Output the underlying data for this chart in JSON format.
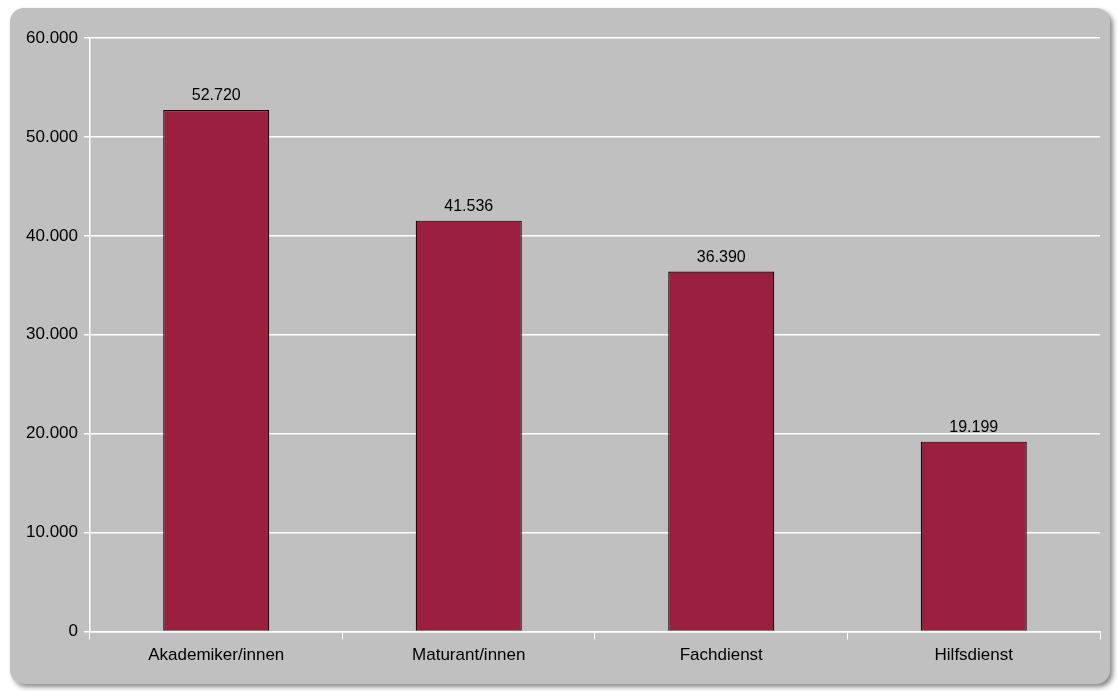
{
  "chart_data": {
    "type": "bar",
    "categories": [
      "Akademiker/innen",
      "Maturant/innen",
      "Fachdienst",
      "Hilfsdienst"
    ],
    "values": [
      52720,
      41536,
      36390,
      19199
    ],
    "value_labels": [
      "52.720",
      "41.536",
      "36.390",
      "19.199"
    ],
    "color": "#9b2040",
    "ylim": [
      0,
      60000
    ],
    "yticks": [
      {
        "value": 0,
        "label": "0"
      },
      {
        "value": 10000,
        "label": "10.000"
      },
      {
        "value": 20000,
        "label": "20.000"
      },
      {
        "value": 30000,
        "label": "30.000"
      },
      {
        "value": 40000,
        "label": "40.000"
      },
      {
        "value": 50000,
        "label": "50.000"
      },
      {
        "value": 60000,
        "label": "60.000"
      }
    ],
    "grid": "y"
  }
}
